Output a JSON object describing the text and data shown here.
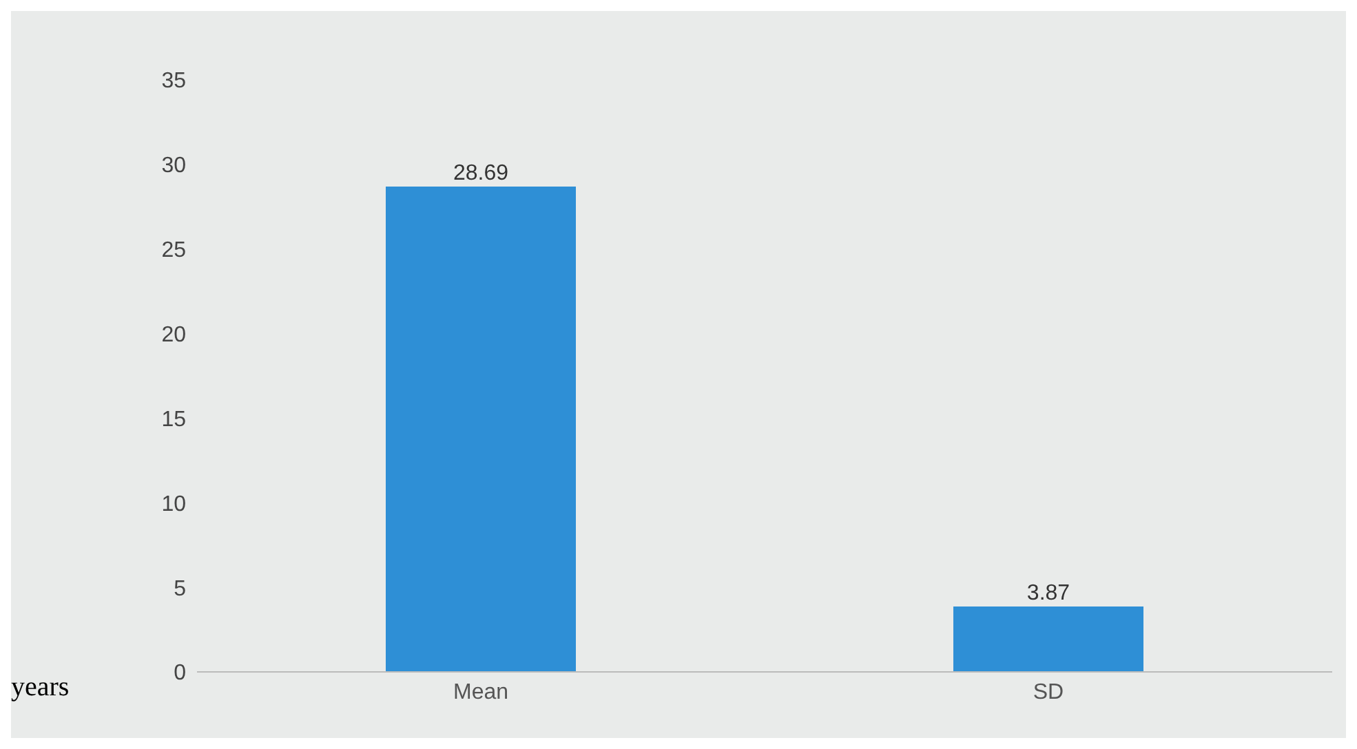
{
  "chart_data": {
    "type": "bar",
    "categories": [
      "Mean",
      "SD"
    ],
    "values": [
      28.69,
      3.87
    ],
    "color": "#2e8fd6",
    "ylim": [
      0,
      35
    ],
    "yticks": [
      0,
      5,
      10,
      15,
      20,
      25,
      30,
      35
    ],
    "data_labels": true,
    "annotations": [
      "years"
    ]
  }
}
